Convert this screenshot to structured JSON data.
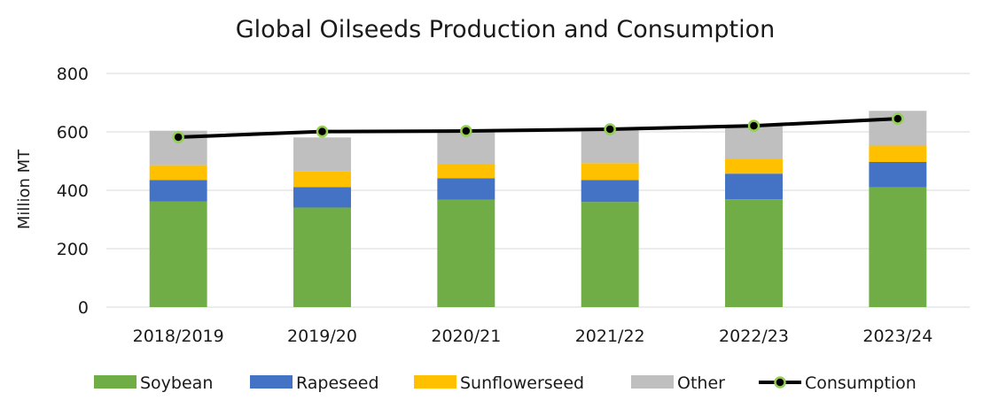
{
  "chart_data": {
    "type": "bar",
    "stacked": true,
    "title": "Global Oilseeds Production and Consumption",
    "xlabel": "",
    "ylabel": "Million MT",
    "ylim": [
      0,
      800
    ],
    "yticks": [
      0,
      200,
      400,
      600,
      800
    ],
    "grid": true,
    "legend_position": "bottom",
    "categories": [
      "2018/2019",
      "2019/20",
      "2020/21",
      "2021/22",
      "2022/23",
      "2023/24"
    ],
    "series": [
      {
        "name": "Soybean",
        "color": "#70ad47",
        "values": [
          362,
          341,
          368,
          360,
          369,
          410
        ]
      },
      {
        "name": "Rapeseed",
        "color": "#4472c4",
        "values": [
          73,
          70,
          73,
          75,
          88,
          87
        ]
      },
      {
        "name": "Sunflowerseed",
        "color": "#ffc000",
        "values": [
          51,
          55,
          50,
          58,
          52,
          56
        ]
      },
      {
        "name": "Other",
        "color": "#bfbfbf",
        "values": [
          118,
          115,
          113,
          117,
          112,
          119
        ]
      }
    ],
    "line_series": {
      "name": "Consumption",
      "type": "line",
      "color": "#000000",
      "marker_color": "#92d050",
      "values": [
        582,
        601,
        603,
        609,
        621,
        645
      ]
    }
  }
}
